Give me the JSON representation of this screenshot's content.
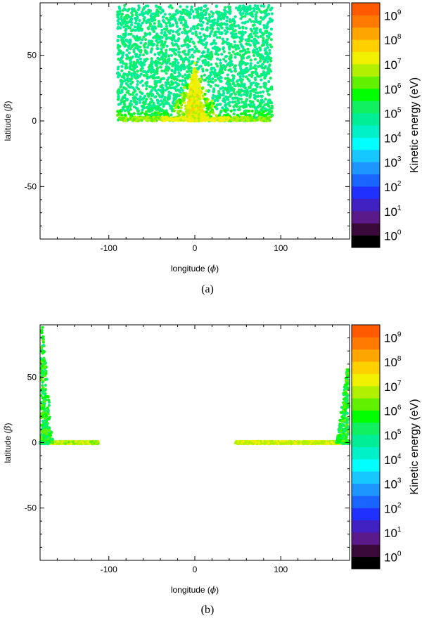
{
  "figure": {
    "colorbar": {
      "label": "Kinetic energy (eV)",
      "tick_base": "10",
      "tick_exponents": [
        "0",
        "1",
        "2",
        "3",
        "4",
        "5",
        "6",
        "7",
        "8",
        "9"
      ],
      "colors": [
        "#000000",
        "#3a0a3a",
        "#5a1a8a",
        "#4020c0",
        "#2030ff",
        "#1a64ff",
        "#1e96ff",
        "#16c8ff",
        "#00ffff",
        "#00f0c8",
        "#00ee96",
        "#10f060",
        "#00ff00",
        "#60f000",
        "#b0f000",
        "#f0f000",
        "#ffd000",
        "#ffa500",
        "#ff7a00",
        "#ff5a00"
      ]
    }
  },
  "chart_data": [
    {
      "type": "scatter",
      "panel": "(a)",
      "caption": "(a)",
      "xlabel_text": "longitude (",
      "xlabel_symbol": "ϕ",
      "xlabel_close": ")",
      "ylabel_text": "latitude (",
      "ylabel_symbol": "β",
      "ylabel_close": ")",
      "xlim": [
        -180,
        180
      ],
      "ylim": [
        -90,
        90
      ],
      "xticks": [
        -100,
        0,
        100
      ],
      "yticks": [
        -50,
        0,
        50
      ],
      "xtick_labels": [
        "-100",
        "0",
        "100"
      ],
      "ytick_labels": [
        "-50",
        "0",
        "50"
      ],
      "grid": false,
      "series": [
        {
          "longitude_range": [
            -90,
            90
          ],
          "latitude_range": [
            0,
            90
          ],
          "typical_energy_eV": "1e5-1e6",
          "description_points": [
            [
              -90,
              5
            ],
            [
              0,
              0
            ],
            [
              90,
              5
            ],
            [
              -90,
              85
            ],
            [
              90,
              85
            ]
          ]
        },
        {
          "core_longitude": 0,
          "core_latitude_range": [
            0,
            45
          ],
          "core_energy_eV": "1e7-1e8"
        }
      ]
    },
    {
      "type": "scatter",
      "panel": "(b)",
      "caption": "(b)",
      "xlabel_text": "longitude (",
      "xlabel_symbol": "ϕ",
      "xlabel_close": ")",
      "ylabel_text": "latitude (",
      "ylabel_symbol": "β",
      "ylabel_close": ")",
      "xlim": [
        -180,
        180
      ],
      "ylim": [
        -90,
        90
      ],
      "xticks": [
        -100,
        0,
        100
      ],
      "yticks": [
        -50,
        0,
        50
      ],
      "xtick_labels": [
        "-100",
        "0",
        "100"
      ],
      "ytick_labels": [
        "-50",
        "0",
        "50"
      ],
      "grid": false,
      "series": [
        {
          "left_band_longitude": [
            -180,
            -112
          ],
          "left_band_latitude": 0,
          "energy_eV": "1e5-1e8"
        },
        {
          "right_band_longitude": [
            47,
            180
          ],
          "right_band_latitude": 0,
          "energy_eV": "1e5-1e8"
        },
        {
          "left_spike_longitude": [
            -180,
            -168
          ],
          "left_spike_latitude": [
            0,
            88
          ],
          "energy_eV": "1e5-1e7"
        },
        {
          "right_spike_longitude": [
            168,
            180
          ],
          "right_spike_latitude": [
            0,
            56
          ],
          "energy_eV": "1e5-1e7"
        }
      ]
    }
  ]
}
